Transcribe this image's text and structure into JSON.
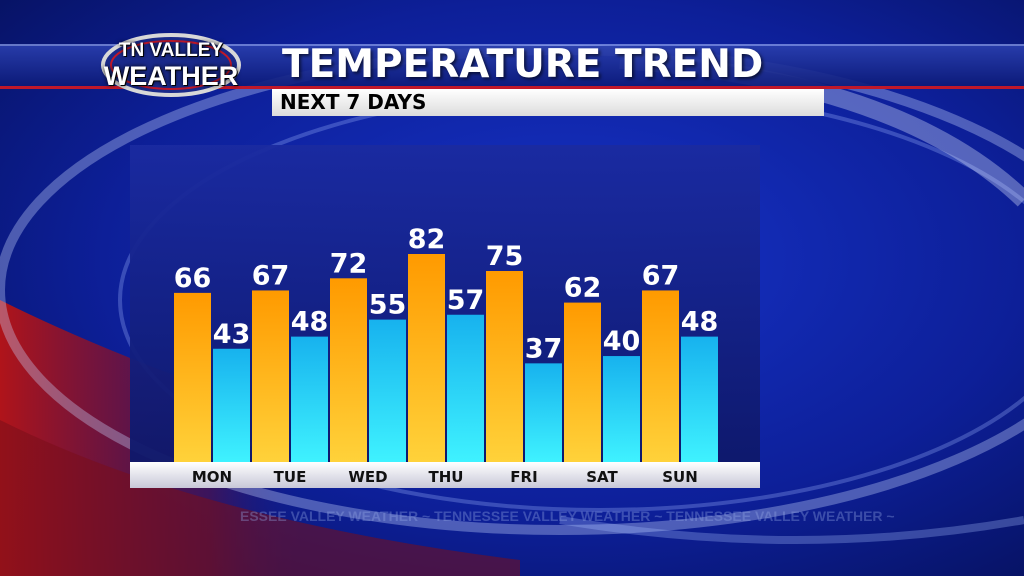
{
  "logo": {
    "line1": "TN VALLEY",
    "line2": "WEATHER"
  },
  "title": "TEMPERATURE TREND",
  "subtitle": "NEXT 7 DAYS",
  "watermark": "ESSEE VALLEY WEATHER ~ TENNESSEE VALLEY WEATHER ~ TENNESSEE VALLEY WEATHER ~",
  "colors": {
    "high": "#f7a400",
    "low": "#1cc4f2",
    "plot_bg": "#13207e"
  },
  "chart_data": {
    "type": "bar",
    "categories": [
      "MON",
      "TUE",
      "WED",
      "THU",
      "FRI",
      "SAT",
      "SUN"
    ],
    "series": [
      {
        "values": [
          66,
          67,
          72,
          82,
          75,
          62,
          67
        ]
      },
      {
        "values": [
          43,
          48,
          55,
          57,
          37,
          40,
          48
        ]
      }
    ],
    "xlabel": "",
    "ylabel": "",
    "grid": false,
    "legend": "none"
  }
}
